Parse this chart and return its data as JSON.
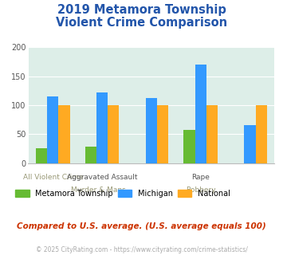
{
  "title_line1": "2019 Metamora Township",
  "title_line2": "Violent Crime Comparison",
  "title_color": "#2255aa",
  "groups": [
    {
      "name": "All Violent Crime",
      "metamora": 25,
      "michigan": 115,
      "national": 100
    },
    {
      "name": "Aggravated Assault",
      "metamora": 29,
      "michigan": 122,
      "national": 100
    },
    {
      "name": "Murder & Mans...",
      "metamora": 0,
      "michigan": 112,
      "national": 100
    },
    {
      "name": "Rape",
      "metamora": 57,
      "michigan": 170,
      "national": 100
    },
    {
      "name": "Robbery",
      "metamora": 0,
      "michigan": 65,
      "national": 100
    }
  ],
  "color_metamora": "#66bb33",
  "color_michigan": "#3399ff",
  "color_national": "#ffaa22",
  "bg_color": "#ddeee8",
  "ylim": [
    0,
    200
  ],
  "yticks": [
    0,
    50,
    100,
    150,
    200
  ],
  "top_labels": [
    "",
    "Aggravated Assault",
    "",
    "Rape",
    ""
  ],
  "bot_labels": [
    "All Violent Crime",
    "Murder & Mans...",
    "",
    "Robbery",
    ""
  ],
  "footnote1": "Compared to U.S. average. (U.S. average equals 100)",
  "footnote2": "© 2025 CityRating.com - https://www.cityrating.com/crime-statistics/",
  "footnote1_color": "#cc3300",
  "footnote2_color": "#aaaaaa",
  "legend_labels": [
    "Metamora Township",
    "Michigan",
    "National"
  ]
}
